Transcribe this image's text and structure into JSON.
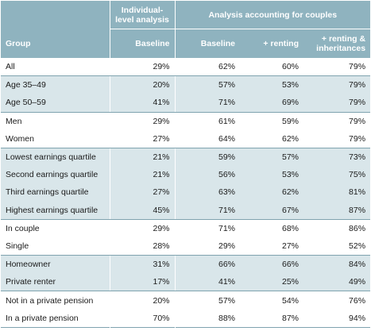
{
  "header": {
    "col_group": "Group",
    "individual_title": [
      "Individual-",
      "level analysis"
    ],
    "couples_title": "Analysis accounting for couples",
    "sub_baseline_ind": "Baseline",
    "sub_baseline_cpl": "Baseline",
    "sub_renting": "+ renting",
    "sub_renting_inh": [
      "+ renting &",
      "inheritances"
    ]
  },
  "rows": [
    {
      "group": "All",
      "ind_baseline": "29%",
      "cpl_baseline": "62%",
      "renting": "60%",
      "renting_inh": "79%",
      "shade": false
    },
    {
      "group": "Age 35–49",
      "ind_baseline": "20%",
      "cpl_baseline": "57%",
      "renting": "53%",
      "renting_inh": "79%",
      "shade": true
    },
    {
      "group": "Age 50–59",
      "ind_baseline": "41%",
      "cpl_baseline": "71%",
      "renting": "69%",
      "renting_inh": "79%",
      "shade": true
    },
    {
      "group": "Men",
      "ind_baseline": "29%",
      "cpl_baseline": "61%",
      "renting": "59%",
      "renting_inh": "79%",
      "shade": false
    },
    {
      "group": "Women",
      "ind_baseline": "27%",
      "cpl_baseline": "64%",
      "renting": "62%",
      "renting_inh": "79%",
      "shade": false
    },
    {
      "group": "Lowest earnings quartile",
      "ind_baseline": "21%",
      "cpl_baseline": "59%",
      "renting": "57%",
      "renting_inh": "73%",
      "shade": true
    },
    {
      "group": "Second earnings quartile",
      "ind_baseline": "21%",
      "cpl_baseline": "56%",
      "renting": "53%",
      "renting_inh": "75%",
      "shade": true
    },
    {
      "group": "Third earnings quartile",
      "ind_baseline": "27%",
      "cpl_baseline": "63%",
      "renting": "62%",
      "renting_inh": "81%",
      "shade": true
    },
    {
      "group": "Highest earnings quartile",
      "ind_baseline": "45%",
      "cpl_baseline": "71%",
      "renting": "67%",
      "renting_inh": "87%",
      "shade": true
    },
    {
      "group": "In couple",
      "ind_baseline": "29%",
      "cpl_baseline": "71%",
      "renting": "68%",
      "renting_inh": "86%",
      "shade": false
    },
    {
      "group": "Single",
      "ind_baseline": "28%",
      "cpl_baseline": "29%",
      "renting": "27%",
      "renting_inh": "52%",
      "shade": false
    },
    {
      "group": "Homeowner",
      "ind_baseline": "31%",
      "cpl_baseline": "66%",
      "renting": "66%",
      "renting_inh": "84%",
      "shade": true
    },
    {
      "group": "Private renter",
      "ind_baseline": "17%",
      "cpl_baseline": "41%",
      "renting": "25%",
      "renting_inh": "49%",
      "shade": true
    },
    {
      "group": "Not in a private pension",
      "ind_baseline": "20%",
      "cpl_baseline": "57%",
      "renting": "54%",
      "renting_inh": "76%",
      "shade": false
    },
    {
      "group": "In a private pension",
      "ind_baseline": "70%",
      "cpl_baseline": "88%",
      "renting": "87%",
      "renting_inh": "94%",
      "shade": false
    }
  ],
  "colors": {
    "header_bg": "#8fb3bf",
    "header_text": "#ffffff",
    "shade_bg": "#d9e6ea",
    "rule": "#7fa3af"
  }
}
